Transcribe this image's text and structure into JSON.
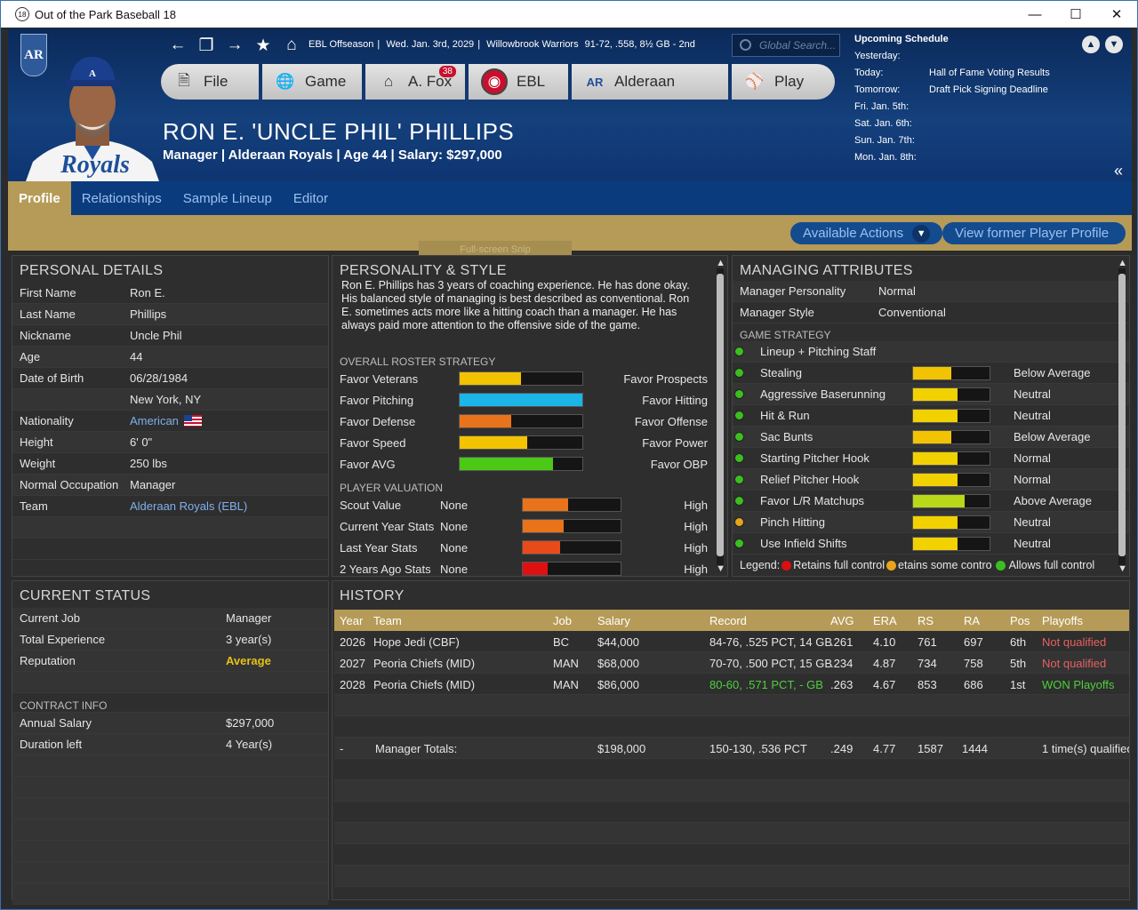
{
  "window": {
    "title": "Out of the Park Baseball 18",
    "app_icon": "18"
  },
  "header": {
    "team_logo": "AR",
    "league_status": "EBL Offseason",
    "date": "Wed. Jan. 3rd, 2029",
    "team": "Willowbrook Warriors",
    "record": "91-72, .558, 8½ GB - 2nd",
    "search_placeholder": "Global Search...",
    "menu": [
      {
        "label": "File",
        "icon": "file-icon"
      },
      {
        "label": "Game",
        "icon": "globe-icon"
      },
      {
        "label": "A. Fox",
        "icon": "home-icon",
        "badge": "38"
      },
      {
        "label": "EBL",
        "icon": "league-logo-icon"
      },
      {
        "label": "Alderaan",
        "icon": "team-logo-icon"
      },
      {
        "label": "Play",
        "icon": "baseball-icon"
      }
    ],
    "manager_name": "RON E. 'UNCLE PHIL' PHILLIPS",
    "manager_sub": "Manager | Alderaan Royals  |  Age 44  |  Salary: $297,000",
    "jersey_text": "Royals",
    "cap_letter": "A"
  },
  "schedule": {
    "title": "Upcoming Schedule",
    "rows": [
      {
        "day": "Yesterday:",
        "event": ""
      },
      {
        "day": "Today:",
        "event": "Hall of Fame Voting Results"
      },
      {
        "day": "Tomorrow:",
        "event": "Draft Pick Signing Deadline"
      },
      {
        "day": "Fri. Jan. 5th:",
        "event": ""
      },
      {
        "day": "Sat. Jan. 6th:",
        "event": ""
      },
      {
        "day": "Sun. Jan. 7th:",
        "event": ""
      },
      {
        "day": "Mon. Jan. 8th:",
        "event": ""
      }
    ]
  },
  "tabs": [
    "Profile",
    "Relationships",
    "Sample Lineup",
    "Editor"
  ],
  "actions": {
    "available": "Available Actions",
    "former": "View former Player Profile",
    "ghost": "Full-screen Snip"
  },
  "personal": {
    "title": "PERSONAL DETAILS",
    "rows": [
      {
        "k": "First Name",
        "v": "Ron E."
      },
      {
        "k": "Last Name",
        "v": "Phillips"
      },
      {
        "k": "Nickname",
        "v": "Uncle Phil"
      },
      {
        "k": "Age",
        "v": "44"
      },
      {
        "k": "Date of Birth",
        "v": "06/28/1984"
      },
      {
        "k": "",
        "v": "New York, NY"
      },
      {
        "k": "Nationality",
        "v": "American"
      },
      {
        "k": "Height",
        "v": "6' 0\""
      },
      {
        "k": "Weight",
        "v": "250 lbs"
      },
      {
        "k": "Normal Occupation",
        "v": "Manager"
      },
      {
        "k": "Team",
        "v": "Alderaan Royals (EBL)"
      }
    ]
  },
  "personality": {
    "title": "PERSONALITY & STYLE",
    "text": "Ron E. Phillips has 3 years of coaching experience.  He has done okay.  His balanced style of managing is best described as conventional. Ron E. sometimes acts more like a hitting coach than a manager.  He has always paid more attention to the offensive side of the game.",
    "roster_title": "OVERALL ROSTER STRATEGY",
    "roster": [
      {
        "left": "Favor Veterans",
        "right": "Favor Prospects",
        "value": 0.5,
        "color": "#f2c300"
      },
      {
        "left": "Favor Pitching",
        "right": "Favor Hitting",
        "value": 1.0,
        "color": "#1cb5e8"
      },
      {
        "left": "Favor Defense",
        "right": "Favor Offense",
        "value": 0.42,
        "color": "#e8731a"
      },
      {
        "left": "Favor Speed",
        "right": "Favor Power",
        "value": 0.55,
        "color": "#f2c300"
      },
      {
        "left": "Favor AVG",
        "right": "Favor OBP",
        "value": 0.76,
        "color": "#4cc817"
      }
    ],
    "valuation_title": "PLAYER VALUATION",
    "valuation": [
      {
        "label": "Scout Value",
        "v": "None",
        "right": "High",
        "value": 0.46,
        "color": "#e8731a"
      },
      {
        "label": "Current Year Stats",
        "v": "None",
        "right": "High",
        "value": 0.42,
        "color": "#e8731a"
      },
      {
        "label": "Last Year Stats",
        "v": "None",
        "right": "High",
        "value": 0.38,
        "color": "#e84a1a"
      },
      {
        "label": "2 Years Ago Stats",
        "v": "None",
        "right": "High",
        "value": 0.25,
        "color": "#e01010"
      }
    ]
  },
  "managing": {
    "title": "MANAGING ATTRIBUTES",
    "rows": [
      {
        "k": "Manager Personality",
        "v": "Normal"
      },
      {
        "k": "Manager Style",
        "v": "Conventional"
      }
    ],
    "strategy_title": "GAME STRATEGY",
    "strategy": [
      {
        "label": "Lineup + Pitching Staff",
        "rating": "",
        "value": null,
        "dot": "#3bbf1e"
      },
      {
        "label": "Stealing",
        "rating": "Below Average",
        "value": 0.5,
        "dot": "#3bbf1e",
        "color": "#f2c300"
      },
      {
        "label": "Aggressive Baserunning",
        "rating": "Neutral",
        "value": 0.58,
        "dot": "#3bbf1e",
        "color": "#f2d100"
      },
      {
        "label": "Hit & Run",
        "rating": "Neutral",
        "value": 0.58,
        "dot": "#3bbf1e",
        "color": "#f2d100"
      },
      {
        "label": "Sac Bunts",
        "rating": "Below Average",
        "value": 0.5,
        "dot": "#3bbf1e",
        "color": "#f2c300"
      },
      {
        "label": "Starting Pitcher Hook",
        "rating": "Normal",
        "value": 0.58,
        "dot": "#3bbf1e",
        "color": "#f2d100"
      },
      {
        "label": "Relief Pitcher Hook",
        "rating": "Normal",
        "value": 0.58,
        "dot": "#3bbf1e",
        "color": "#f2d100"
      },
      {
        "label": "Favor L/R Matchups",
        "rating": "Above Average",
        "value": 0.67,
        "dot": "#3bbf1e",
        "color": "#b8d818"
      },
      {
        "label": "Pinch Hitting",
        "rating": "Neutral",
        "value": 0.58,
        "dot": "#e6a51a",
        "color": "#f2d100"
      },
      {
        "label": "Use Infield Shifts",
        "rating": "Neutral",
        "value": 0.58,
        "dot": "#3bbf1e",
        "color": "#f2d100"
      }
    ],
    "legend": {
      "label": "Legend:",
      "a": "Retains full control",
      "b": "etains some contro",
      "c": "Allows full control"
    }
  },
  "status": {
    "title": "CURRENT STATUS",
    "rows": [
      {
        "k": "Current Job",
        "v": "Manager"
      },
      {
        "k": "Total Experience",
        "v": "3 year(s)"
      },
      {
        "k": "Reputation",
        "v": "Average"
      }
    ],
    "contract_title": "CONTRACT INFO",
    "contract": [
      {
        "k": "Annual Salary",
        "v": "$297,000"
      },
      {
        "k": "Duration left",
        "v": "4 Year(s)"
      }
    ]
  },
  "history": {
    "title": "HISTORY",
    "columns": [
      "Year",
      "Team",
      "Job",
      "Salary",
      "Record",
      "AVG",
      "ERA",
      "RS",
      "RA",
      "Pos",
      "Playoffs"
    ],
    "rows": [
      {
        "year": "2026",
        "team": "Hope Jedi (CBF)",
        "job": "BC",
        "salary": "$44,000",
        "record": "84-76, .525 PCT, 14 GB",
        "avg": ".261",
        "era": "4.10",
        "rs": "761",
        "ra": "697",
        "pos": "6th",
        "playoffs": "Not qualified",
        "rec_color": "#e6e6e6",
        "po_color": "#e86060"
      },
      {
        "year": "2027",
        "team": "Peoria Chiefs (MID)",
        "job": "MAN",
        "salary": "$68,000",
        "record": "70-70, .500 PCT, 15 GB",
        "avg": ".234",
        "era": "4.87",
        "rs": "734",
        "ra": "758",
        "pos": "5th",
        "playoffs": "Not qualified",
        "rec_color": "#e6e6e6",
        "po_color": "#e86060"
      },
      {
        "year": "2028",
        "team": "Peoria Chiefs (MID)",
        "job": "MAN",
        "salary": "$86,000",
        "record": "80-60, .571 PCT, - GB",
        "avg": ".263",
        "era": "4.67",
        "rs": "853",
        "ra": "686",
        "pos": "1st",
        "playoffs": "WON Playoffs",
        "rec_color": "#4cd03a",
        "po_color": "#4cd03a"
      }
    ],
    "totals": {
      "year": "-",
      "label": "Manager Totals:",
      "salary": "$198,000",
      "record": "150-130, .536 PCT",
      "avg": ".249",
      "era": "4.77",
      "rs": "1587",
      "ra": "1444",
      "playoffs": "1 time(s) qualified"
    }
  }
}
